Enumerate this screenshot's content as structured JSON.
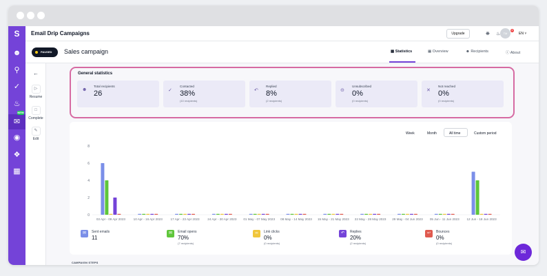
{
  "app": {
    "logo_letter": "S",
    "title": "Email Drip Campaigns"
  },
  "topbar": {
    "upgrade_label": "Upgrade",
    "notification_count": "8",
    "avatar_initials": "TM",
    "language": "EN"
  },
  "campaign": {
    "status": "PAUSED",
    "name": "Sales campaign"
  },
  "tabs": [
    {
      "label": "Statistics",
      "active": true
    },
    {
      "label": "Overview",
      "active": false
    },
    {
      "label": "Recipients",
      "active": false
    },
    {
      "label": "About",
      "active": false
    }
  ],
  "left_actions": [
    {
      "label": "",
      "icon": "back-arrow-icon"
    },
    {
      "label": "Resume",
      "icon": "play-icon"
    },
    {
      "label": "Complete",
      "icon": "stop-icon"
    },
    {
      "label": "Edit",
      "icon": "pencil-icon"
    }
  ],
  "sidebar": {
    "new_badge": "NEW"
  },
  "stats": {
    "title": "General statistics",
    "items": [
      {
        "label": "Total recipients",
        "value": "26",
        "sub": ""
      },
      {
        "label": "Contacted",
        "value": "38%",
        "sub": "(10 recipients)"
      },
      {
        "label": "Replied",
        "value": "8%",
        "sub": "(2 recipients)"
      },
      {
        "label": "Unsubscribed",
        "value": "0%",
        "sub": "(0 recipients)"
      },
      {
        "label": "Not reached",
        "value": "0%",
        "sub": "(0 recipients)"
      }
    ]
  },
  "periods": [
    {
      "label": "Week",
      "active": false
    },
    {
      "label": "Month",
      "active": false
    },
    {
      "label": "All time",
      "active": true
    },
    {
      "label": "Custom period",
      "active": false
    }
  ],
  "chart_data": {
    "type": "bar",
    "title": "",
    "xlabel": "",
    "ylabel": "",
    "ylim": [
      0,
      8
    ],
    "yticks": [
      "0",
      "2",
      "4",
      "6",
      "8"
    ],
    "categories": [
      "03 Apr - 09 Apr 2023",
      "10 Apr - 16 Apr 2023",
      "17 Apr - 23 Apr 2023",
      "24 Apr - 30 Apr 2023",
      "01 May - 07 May 2023",
      "08 May - 14 May 2023",
      "15 May - 21 May 2023",
      "22 May - 28 May 2023",
      "29 May - 04 Jun 2023",
      "05 Jun - 11 Jun 2023",
      "12 Jun - 18 Jun 2023"
    ],
    "series": [
      {
        "name": "Sent emails",
        "color": "#7b8fe8",
        "values": [
          6,
          0,
          0,
          0,
          0,
          0,
          0,
          0,
          0,
          0,
          5
        ]
      },
      {
        "name": "Email opens",
        "color": "#5fc63b",
        "values": [
          4,
          0,
          0,
          0,
          0,
          0,
          0,
          0,
          0,
          0,
          4
        ]
      },
      {
        "name": "Link clicks",
        "color": "#f0c63c",
        "values": [
          0,
          0,
          0,
          0,
          0,
          0,
          0,
          0,
          0,
          0,
          0
        ]
      },
      {
        "name": "Replies",
        "color": "#7443d8",
        "values": [
          2,
          0,
          0,
          0,
          0,
          0,
          0,
          0,
          0,
          0,
          0
        ]
      },
      {
        "name": "Bounces",
        "color": "#e05a4f",
        "values": [
          0,
          0,
          0,
          0,
          0,
          0,
          0,
          0,
          0,
          0,
          0
        ]
      }
    ]
  },
  "legend": [
    {
      "label": "Sent emails",
      "value": "11",
      "sub": "",
      "color": "#7b8fe8",
      "icon": "mail-icon"
    },
    {
      "label": "Email opens",
      "value": "70%",
      "sub": "(7 recipients)",
      "color": "#5fc63b",
      "icon": "open-mail-icon"
    },
    {
      "label": "Link clicks",
      "value": "0%",
      "sub": "(0 recipients)",
      "color": "#f0c63c",
      "icon": "link-icon"
    },
    {
      "label": "Replies",
      "value": "20%",
      "sub": "(2 recipients)",
      "color": "#7443d8",
      "icon": "reply-icon"
    },
    {
      "label": "Bounces",
      "value": "0%",
      "sub": "(0 recipients)",
      "color": "#e05a4f",
      "icon": "bounce-icon"
    }
  ],
  "section": {
    "campaign_steps_label": "CAMPAIGN STEPS"
  }
}
